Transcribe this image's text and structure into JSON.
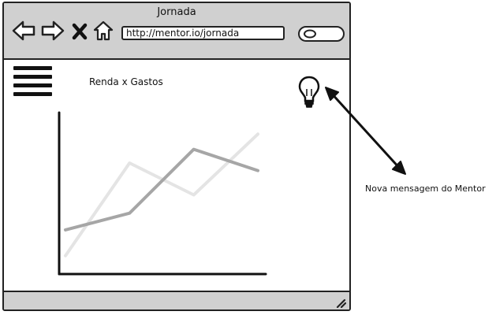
{
  "window": {
    "title": "Jornada",
    "address": "http://mentor.io/jornada"
  },
  "toolbar": {
    "icons": [
      "back-arrow-icon",
      "forward-arrow-icon",
      "close-x-icon",
      "home-icon",
      "search-icon"
    ]
  },
  "content": {
    "chart_title": "Renda x Gastos"
  },
  "annotation": {
    "text": "Nova mensagem do Mentor"
  },
  "colors": {
    "chrome": "#d0d0d0",
    "outline": "#222222",
    "series_dark": "#a6a6a6",
    "series_light": "#e4e4e4"
  },
  "chart_data": {
    "type": "line",
    "title": "Renda x Gastos",
    "xlabel": "",
    "ylabel": "",
    "x": [
      0,
      1,
      2,
      3
    ],
    "ylim": [
      0,
      100
    ],
    "grid": false,
    "series": [
      {
        "values": [
          10,
          71,
          50,
          90
        ]
      },
      {
        "values": [
          27,
          38,
          80,
          66
        ]
      }
    ]
  }
}
